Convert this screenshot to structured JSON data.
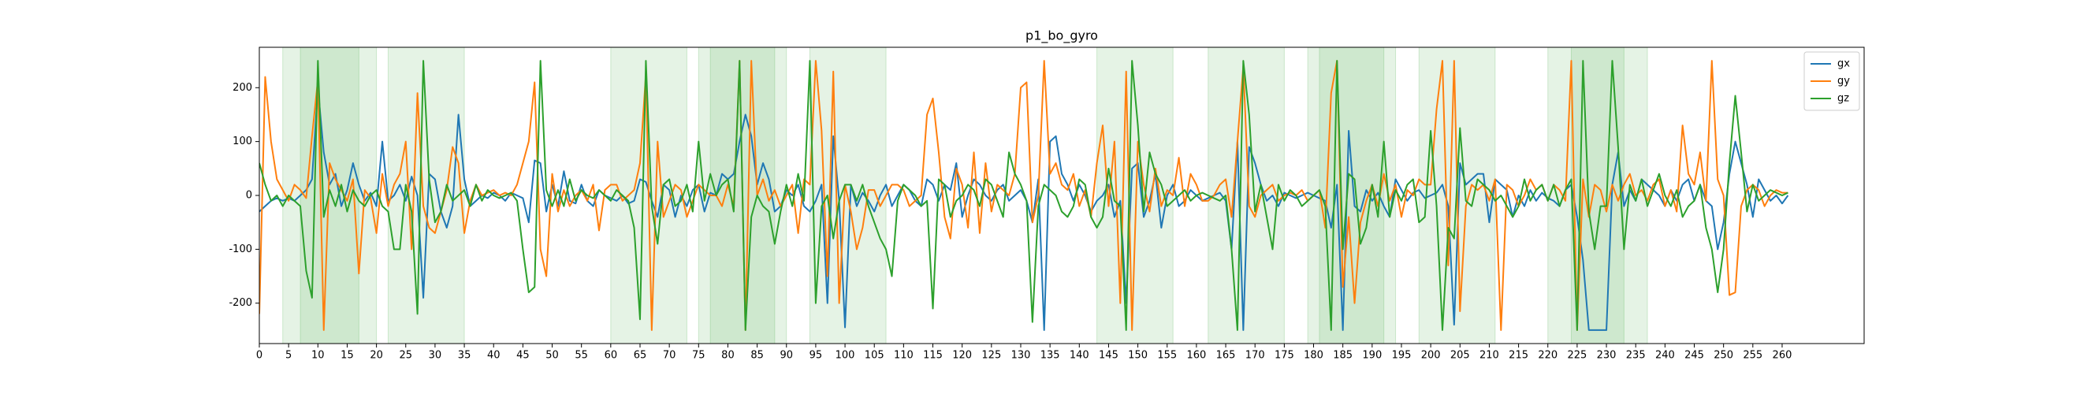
{
  "chart_data": {
    "type": "line",
    "title": "p1_bo_gyro",
    "x": [
      0,
      1,
      2,
      3,
      4,
      5,
      6,
      7,
      8,
      9,
      10,
      11,
      12,
      13,
      14,
      15,
      16,
      17,
      18,
      19,
      20,
      21,
      22,
      23,
      24,
      25,
      26,
      27,
      28,
      29,
      30,
      31,
      32,
      33,
      34,
      35,
      36,
      37,
      38,
      39,
      40,
      41,
      42,
      43,
      44,
      45,
      46,
      47,
      48,
      49,
      50,
      51,
      52,
      53,
      54,
      55,
      56,
      57,
      58,
      59,
      60,
      61,
      62,
      63,
      64,
      65,
      66,
      67,
      68,
      69,
      70,
      71,
      72,
      73,
      74,
      75,
      76,
      77,
      78,
      79,
      80,
      81,
      82,
      83,
      84,
      85,
      86,
      87,
      88,
      89,
      90,
      91,
      92,
      93,
      94,
      95,
      96,
      97,
      98,
      99,
      100,
      101,
      102,
      103,
      104,
      105,
      106,
      107,
      108,
      109,
      110,
      111,
      112,
      113,
      114,
      115,
      116,
      117,
      118,
      119,
      120,
      121,
      122,
      123,
      124,
      125,
      126,
      127,
      128,
      129,
      130,
      131,
      132,
      133,
      134,
      135,
      136,
      137,
      138,
      139,
      140,
      141,
      142,
      143,
      144,
      145,
      146,
      147,
      148,
      149,
      150,
      151,
      152,
      153,
      154,
      155,
      156,
      157,
      158,
      159,
      160,
      161,
      162,
      163,
      164,
      165,
      166,
      167,
      168,
      169,
      170,
      171,
      172,
      173,
      174,
      175,
      176,
      177,
      178,
      179,
      180,
      181,
      182,
      183,
      184,
      185,
      186,
      187,
      188,
      189,
      190,
      191,
      192,
      193,
      194,
      195,
      196,
      197,
      198,
      199,
      200,
      201,
      202,
      203,
      204,
      205,
      206,
      207,
      208,
      209,
      210,
      211,
      212,
      213,
      214,
      215,
      216,
      217,
      218,
      219,
      220,
      221,
      222,
      223,
      224,
      225,
      226,
      227,
      228,
      229,
      230,
      231,
      232,
      233,
      234,
      235,
      236,
      237,
      238,
      239,
      240,
      241,
      242,
      243,
      244,
      245,
      246,
      247,
      248,
      249,
      250,
      251,
      252,
      253,
      254,
      255,
      256,
      257,
      258,
      259,
      260,
      261
    ],
    "series": [
      {
        "name": "gx",
        "color": "#1f77b4",
        "values": [
          -30,
          -20,
          -10,
          -5,
          -10,
          -5,
          -10,
          0,
          10,
          30,
          200,
          80,
          20,
          40,
          -20,
          10,
          60,
          20,
          -10,
          5,
          -20,
          100,
          -10,
          0,
          20,
          -10,
          35,
          0,
          -190,
          40,
          30,
          -30,
          -60,
          -20,
          150,
          30,
          -20,
          -10,
          0,
          -5,
          5,
          0,
          -10,
          5,
          0,
          -5,
          -50,
          65,
          60,
          -30,
          20,
          -20,
          45,
          -10,
          -15,
          20,
          -10,
          -20,
          10,
          0,
          -5,
          -10,
          0,
          -15,
          -10,
          30,
          25,
          -10,
          -40,
          20,
          10,
          -40,
          0,
          -20,
          10,
          20,
          -30,
          5,
          0,
          40,
          30,
          40,
          100,
          150,
          110,
          20,
          60,
          30,
          -30,
          -20,
          10,
          0,
          20,
          -20,
          -30,
          -10,
          20,
          -200,
          110,
          -10,
          -245,
          20,
          -20,
          5,
          -10,
          -30,
          0,
          20,
          -20,
          0,
          20,
          10,
          -10,
          -20,
          30,
          20,
          -10,
          20,
          10,
          60,
          -40,
          0,
          30,
          20,
          0,
          -10,
          10,
          20,
          -10,
          0,
          10,
          -10,
          -50,
          30,
          -250,
          100,
          110,
          40,
          20,
          -10,
          20,
          0,
          -30,
          -10,
          0,
          20,
          -40,
          -10,
          -200,
          50,
          60,
          -40,
          -10,
          40,
          -60,
          0,
          20,
          -20,
          -10,
          10,
          0,
          -10,
          -5,
          0,
          5,
          -10,
          -100,
          100,
          -250,
          90,
          60,
          20,
          -10,
          0,
          -20,
          5,
          0,
          -5,
          0,
          5,
          0,
          -5,
          -10,
          -60,
          20,
          -250,
          120,
          -20,
          -30,
          10,
          -10,
          5,
          -20,
          -40,
          30,
          10,
          -10,
          5,
          10,
          -5,
          0,
          5,
          20,
          -20,
          -240,
          60,
          20,
          30,
          40,
          40,
          -50,
          30,
          20,
          10,
          -40,
          0,
          -20,
          10,
          -10,
          5,
          -5,
          -10,
          -20,
          10,
          20,
          -40,
          -120,
          -250,
          -250,
          -250,
          -250,
          20,
          80,
          -20,
          10,
          -10,
          30,
          20,
          10,
          0,
          -20,
          10,
          -10,
          20,
          30,
          -10,
          20,
          -10,
          -20,
          -100,
          -50,
          40,
          100,
          60,
          20,
          -40,
          30,
          10,
          -10,
          0,
          -15,
          0
        ]
      },
      {
        "name": "gy",
        "color": "#ff7f0e",
        "values": [
          -220,
          220,
          100,
          30,
          10,
          -10,
          20,
          10,
          -5,
          110,
          215,
          -250,
          60,
          30,
          10,
          -10,
          30,
          -145,
          10,
          -5,
          -70,
          40,
          -20,
          20,
          40,
          100,
          -100,
          190,
          -20,
          -60,
          -70,
          -30,
          10,
          90,
          60,
          -70,
          -10,
          20,
          0,
          5,
          10,
          0,
          5,
          0,
          20,
          60,
          100,
          210,
          -100,
          -150,
          40,
          -30,
          10,
          -20,
          0,
          10,
          -10,
          20,
          -65,
          10,
          20,
          20,
          -10,
          0,
          10,
          60,
          225,
          -250,
          100,
          -40,
          -10,
          20,
          10,
          -40,
          -10,
          20,
          10,
          0,
          0,
          -20,
          20,
          -20,
          250,
          -250,
          250,
          0,
          30,
          -10,
          10,
          -20,
          0,
          20,
          -70,
          30,
          20,
          250,
          120,
          -150,
          230,
          -200,
          20,
          -30,
          -100,
          -60,
          10,
          10,
          -20,
          0,
          20,
          20,
          10,
          -20,
          -10,
          0,
          150,
          180,
          80,
          -40,
          -80,
          50,
          20,
          -60,
          80,
          -70,
          60,
          -30,
          20,
          10,
          0,
          40,
          200,
          210,
          -50,
          0,
          250,
          40,
          60,
          20,
          10,
          40,
          -20,
          10,
          -40,
          60,
          130,
          -20,
          100,
          -200,
          230,
          -250,
          100,
          20,
          -30,
          50,
          -20,
          10,
          0,
          70,
          -20,
          40,
          20,
          -10,
          -10,
          0,
          20,
          30,
          -40,
          100,
          240,
          -20,
          -40,
          0,
          10,
          20,
          -10,
          0,
          5,
          0,
          10,
          -10,
          0,
          10,
          -60,
          190,
          250,
          -170,
          -40,
          -200,
          -50,
          -10,
          20,
          -20,
          40,
          -10,
          20,
          -40,
          10,
          0,
          30,
          20,
          20,
          160,
          250,
          -130,
          250,
          -215,
          -20,
          20,
          10,
          20,
          -10,
          30,
          -250,
          20,
          10,
          -20,
          0,
          30,
          10,
          20,
          -10,
          20,
          10,
          -10,
          250,
          -250,
          30,
          -40,
          20,
          10,
          -30,
          20,
          -10,
          20,
          40,
          0,
          10,
          -10,
          20,
          30,
          -20,
          10,
          -30,
          130,
          40,
          20,
          80,
          -10,
          250,
          30,
          0,
          -185,
          -180,
          -20,
          10,
          20,
          10,
          -20,
          0,
          10,
          5,
          5
        ]
      },
      {
        "name": "gz",
        "color": "#2ca02c",
        "values": [
          60,
          20,
          -10,
          0,
          -20,
          0,
          -10,
          -20,
          -140,
          -190,
          250,
          -40,
          10,
          -20,
          20,
          -30,
          10,
          -10,
          -20,
          0,
          10,
          -20,
          -30,
          -100,
          -100,
          20,
          -30,
          -220,
          250,
          30,
          -50,
          -30,
          20,
          -10,
          0,
          10,
          -20,
          20,
          -10,
          10,
          0,
          -5,
          0,
          5,
          -10,
          -100,
          -180,
          -170,
          250,
          10,
          -20,
          10,
          -20,
          30,
          -10,
          10,
          0,
          -5,
          10,
          0,
          -10,
          10,
          0,
          -10,
          -60,
          -230,
          250,
          -20,
          -90,
          20,
          30,
          -20,
          -10,
          20,
          -30,
          100,
          -10,
          40,
          0,
          20,
          30,
          -30,
          250,
          -250,
          -40,
          0,
          -20,
          -30,
          -90,
          -30,
          20,
          -20,
          40,
          -10,
          250,
          -200,
          -20,
          0,
          -80,
          -10,
          20,
          20,
          -10,
          20,
          -20,
          -50,
          -80,
          -100,
          -150,
          -10,
          20,
          10,
          0,
          -20,
          -10,
          -210,
          30,
          20,
          -40,
          -10,
          0,
          20,
          10,
          -20,
          30,
          20,
          -10,
          -40,
          80,
          40,
          20,
          -10,
          -235,
          -20,
          20,
          10,
          0,
          -30,
          -40,
          -20,
          30,
          20,
          -40,
          -60,
          -40,
          50,
          -10,
          -20,
          -250,
          250,
          130,
          -30,
          80,
          40,
          20,
          -20,
          -10,
          0,
          10,
          -10,
          0,
          5,
          0,
          -5,
          -10,
          0,
          -100,
          -250,
          250,
          150,
          -30,
          20,
          -40,
          -100,
          20,
          -10,
          10,
          0,
          -20,
          -10,
          0,
          10,
          -20,
          -250,
          250,
          -100,
          40,
          30,
          -90,
          -60,
          20,
          -40,
          100,
          -40,
          10,
          -10,
          20,
          30,
          -50,
          -40,
          120,
          -20,
          -250,
          -60,
          -80,
          125,
          -10,
          -20,
          30,
          20,
          10,
          -10,
          0,
          -20,
          -40,
          -20,
          30,
          -10,
          10,
          20,
          -10,
          20,
          -20,
          10,
          30,
          -250,
          250,
          -30,
          -100,
          -20,
          -20,
          250,
          90,
          -100,
          20,
          -10,
          30,
          -20,
          10,
          40,
          0,
          -20,
          10,
          -40,
          -20,
          -10,
          20,
          -60,
          -100,
          -180,
          -100,
          60,
          185,
          80,
          -30,
          20,
          -10,
          0,
          10,
          5,
          0,
          5
        ]
      }
    ],
    "spans": [
      [
        4,
        17
      ],
      [
        7,
        20
      ],
      [
        22,
        35
      ],
      [
        60,
        73
      ],
      [
        75,
        88
      ],
      [
        77,
        90
      ],
      [
        94,
        107
      ],
      [
        143,
        156
      ],
      [
        162,
        175
      ],
      [
        179,
        192
      ],
      [
        181,
        194
      ],
      [
        198,
        211
      ],
      [
        220,
        233
      ],
      [
        224,
        237
      ]
    ],
    "span_color": "#2ca02c",
    "xlim": [
      0,
      274
    ],
    "xticks": [
      0,
      5,
      10,
      15,
      20,
      25,
      30,
      35,
      40,
      45,
      50,
      55,
      60,
      65,
      70,
      75,
      80,
      85,
      90,
      95,
      100,
      105,
      110,
      115,
      120,
      125,
      130,
      135,
      140,
      145,
      150,
      155,
      160,
      165,
      170,
      175,
      180,
      185,
      190,
      195,
      200,
      205,
      210,
      215,
      220,
      225,
      230,
      235,
      240,
      245,
      250,
      255,
      260
    ],
    "ylim": [
      -275,
      275
    ],
    "yticks": [
      -200,
      -100,
      0,
      100,
      200
    ],
    "legend": "upper right"
  }
}
